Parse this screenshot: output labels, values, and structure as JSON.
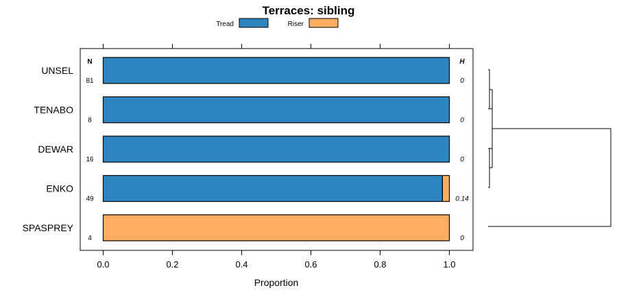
{
  "chart_data": {
    "type": "bar",
    "stacked": true,
    "orientation": "horizontal",
    "title": "Terraces: sibling",
    "xlabel": "Proportion",
    "ylabel": "",
    "xlim": [
      -0.06,
      1.06
    ],
    "xticks": [
      0.0,
      0.2,
      0.4,
      0.6,
      0.8,
      1.0
    ],
    "xtick_labels": [
      "0.0",
      "0.2",
      "0.4",
      "0.6",
      "0.8",
      "1.0"
    ],
    "categories": [
      "UNSEL",
      "TENABO",
      "DEWAR",
      "ENKO",
      "SPASPREY"
    ],
    "series": [
      {
        "name": "Tread",
        "color": "#2E86C1",
        "values": [
          1.0,
          1.0,
          1.0,
          0.98,
          0.0
        ]
      },
      {
        "name": "Riser",
        "color": "#FFAD60",
        "values": [
          0.0,
          0.0,
          0.0,
          0.02,
          1.0
        ]
      }
    ],
    "n_header": "N",
    "n_values": [
      "81",
      "8",
      "16",
      "49",
      "4"
    ],
    "h_header": "H",
    "h_values": [
      "0",
      "0",
      "0",
      "0.14",
      "0"
    ],
    "legend_position": "top"
  }
}
